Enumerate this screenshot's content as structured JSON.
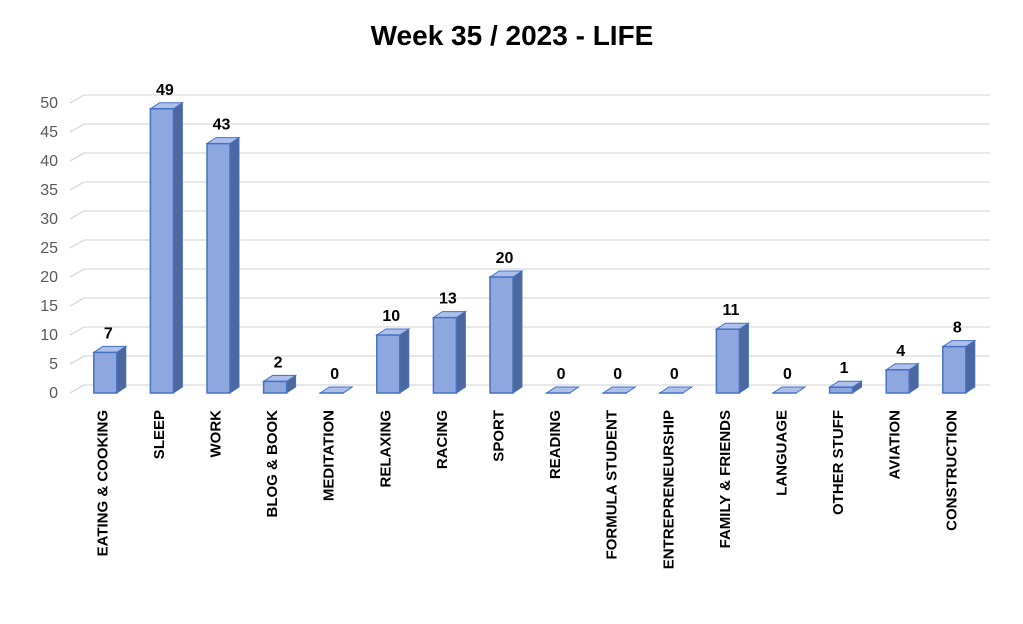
{
  "chart_data": {
    "type": "bar",
    "style": "3d-column",
    "title": "Week 35 / 2023 - LIFE",
    "xlabel": "",
    "ylabel": "",
    "ylim": [
      0,
      50
    ],
    "yticks": [
      0,
      5,
      10,
      15,
      20,
      25,
      30,
      35,
      40,
      45,
      50
    ],
    "grid": true,
    "legend": "none",
    "categories": [
      "EATING & COOKING",
      "SLEEP",
      "WORK",
      "BLOG & BOOK",
      "MEDITATION",
      "RELAXING",
      "RACING",
      "SPORT",
      "READING",
      "FORMULA STUDENT",
      "ENTREPRENEURSHIP",
      "FAMILY & FRIENDS",
      "LANGUAGE",
      "OTHER STUFF",
      "AVIATION",
      "CONSTRUCTION"
    ],
    "values": [
      7,
      49,
      43,
      2,
      0,
      10,
      13,
      20,
      0,
      0,
      0,
      11,
      0,
      1,
      4,
      8
    ],
    "colors": {
      "bar_front": "#8fa7df",
      "bar_side": "#4f679f",
      "bar_top": "#aec0ea",
      "bar_edge": "#4472c4",
      "grid": "#d9d9d9"
    }
  }
}
